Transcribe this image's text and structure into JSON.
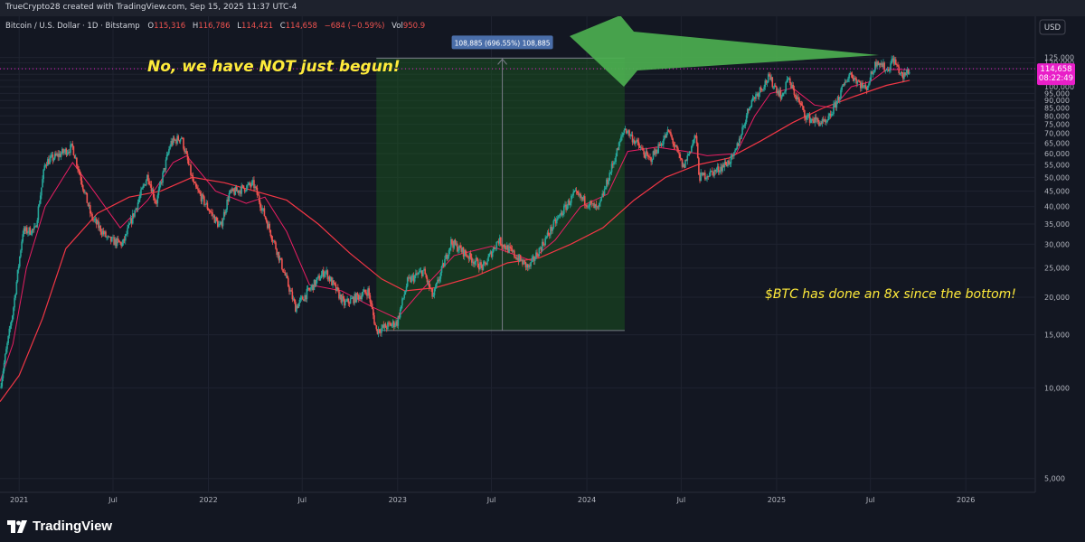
{
  "header": {
    "created_by": "TrueCrypto28 created with TradingView.com, Sep 15, 2025 11:37 UTC-4"
  },
  "symbol_bar": {
    "symbol": "Bitcoin / U.S. Dollar · 1D · Bitstamp",
    "o_label": "O",
    "o": "115,316",
    "h_label": "H",
    "h": "116,786",
    "l_label": "L",
    "l": "114,421",
    "c_label": "C",
    "c": "114,658",
    "change": "−684 (−0.59%)",
    "vol_label": "Vol",
    "vol": "950.9"
  },
  "currency": "USD",
  "price_tag": {
    "price": "114,658",
    "countdown": "08:22:49"
  },
  "annotations": {
    "headline": "No, we have NOT just begun!",
    "btc_note": "$BTC has done an 8x since the bottom!",
    "measure_label": "108,885 (696.55%) 108,885"
  },
  "branding": {
    "logo_text": "TradingView"
  },
  "colors": {
    "background": "#131722",
    "up_candle": "#26a69a",
    "down_candle": "#ef5350",
    "ma_fast": "#e91e63",
    "ma_slow": "#f23645",
    "measure_fill": "#1b5e20",
    "measure_label_bg": "#4a6ea9",
    "annotation_yellow": "#ffeb3b",
    "arrow_green": "#4caf50",
    "price_tag": "#e91ec8"
  },
  "chart_data": {
    "type": "line",
    "title": "Bitcoin / U.S. Dollar · 1D · Bitstamp",
    "y_scale": "log",
    "ylim": [
      5000,
      140000
    ],
    "y_ticks": [
      "125,000",
      "120,000",
      "115,000",
      "110,000",
      "105,000",
      "100,000",
      "95,000",
      "90,000",
      "85,000",
      "80,000",
      "75,000",
      "70,000",
      "65,000",
      "60,000",
      "55,000",
      "50,000",
      "45,000",
      "40,000",
      "35,000",
      "30,000",
      "25,000",
      "20,000",
      "15,000",
      "10,000",
      "5,000"
    ],
    "x_range": [
      "2020-11-25",
      "2026-05-15"
    ],
    "x_ticks": [
      {
        "label": "2021",
        "date": "2021-01-01"
      },
      {
        "label": "Jul",
        "date": "2021-07-01"
      },
      {
        "label": "2022",
        "date": "2022-01-01"
      },
      {
        "label": "Jul",
        "date": "2022-07-01"
      },
      {
        "label": "2023",
        "date": "2023-01-01"
      },
      {
        "label": "Jul",
        "date": "2023-07-01"
      },
      {
        "label": "2024",
        "date": "2024-01-01"
      },
      {
        "label": "Jul",
        "date": "2024-07-01"
      },
      {
        "label": "2025",
        "date": "2025-01-01"
      },
      {
        "label": "Jul",
        "date": "2025-07-01"
      },
      {
        "label": "2026",
        "date": "2026-01-01"
      }
    ],
    "series": [
      {
        "kind": "price",
        "points": [
          [
            "2020-11-25",
            10000
          ],
          [
            "2020-12-20",
            18000
          ],
          [
            "2021-01-08",
            33000
          ],
          [
            "2021-02-01",
            33500
          ],
          [
            "2021-02-20",
            56000
          ],
          [
            "2021-04-14",
            63000
          ],
          [
            "2021-05-20",
            37000
          ],
          [
            "2021-06-22",
            31000
          ],
          [
            "2021-07-20",
            30000
          ],
          [
            "2021-09-06",
            51000
          ],
          [
            "2021-09-22",
            41000
          ],
          [
            "2021-10-20",
            65000
          ],
          [
            "2021-11-10",
            68000
          ],
          [
            "2021-12-04",
            47000
          ],
          [
            "2022-01-24",
            34000
          ],
          [
            "2022-02-10",
            44000
          ],
          [
            "2022-03-29",
            47500
          ],
          [
            "2022-05-12",
            29000
          ],
          [
            "2022-06-18",
            18500
          ],
          [
            "2022-08-14",
            24500
          ],
          [
            "2022-09-20",
            19000
          ],
          [
            "2022-11-05",
            21000
          ],
          [
            "2022-11-21",
            15500
          ],
          [
            "2022-12-31",
            16500
          ],
          [
            "2023-01-20",
            22500
          ],
          [
            "2023-02-20",
            24500
          ],
          [
            "2023-03-10",
            20000
          ],
          [
            "2023-04-14",
            30500
          ],
          [
            "2023-06-15",
            25000
          ],
          [
            "2023-07-14",
            31000
          ],
          [
            "2023-09-11",
            25000
          ],
          [
            "2023-10-30",
            35000
          ],
          [
            "2023-12-08",
            44000
          ],
          [
            "2024-01-23",
            39000
          ],
          [
            "2024-02-15",
            52000
          ],
          [
            "2024-03-14",
            73000
          ],
          [
            "2024-05-01",
            57000
          ],
          [
            "2024-06-07",
            71000
          ],
          [
            "2024-07-05",
            54000
          ],
          [
            "2024-07-29",
            69000
          ],
          [
            "2024-08-05",
            50000
          ],
          [
            "2024-09-06",
            52500
          ],
          [
            "2024-10-10",
            58000
          ],
          [
            "2024-11-12",
            89000
          ],
          [
            "2024-12-17",
            107000
          ],
          [
            "2025-01-13",
            92000
          ],
          [
            "2025-01-21",
            107000
          ],
          [
            "2025-02-28",
            79000
          ],
          [
            "2025-04-07",
            75000
          ],
          [
            "2025-05-22",
            111000
          ],
          [
            "2025-06-22",
            98000
          ],
          [
            "2025-07-14",
            123000
          ],
          [
            "2025-08-02",
            113000
          ],
          [
            "2025-08-14",
            124000
          ],
          [
            "2025-09-01",
            107000
          ],
          [
            "2025-09-15",
            114658
          ]
        ]
      },
      {
        "kind": "ma_fast",
        "points": [
          [
            "2020-11-25",
            10500
          ],
          [
            "2020-12-20",
            14000
          ],
          [
            "2021-01-15",
            25000
          ],
          [
            "2021-02-20",
            40000
          ],
          [
            "2021-04-14",
            56000
          ],
          [
            "2021-05-25",
            45000
          ],
          [
            "2021-07-15",
            34000
          ],
          [
            "2021-09-06",
            42000
          ],
          [
            "2021-10-25",
            56000
          ],
          [
            "2021-11-20",
            59000
          ],
          [
            "2022-01-15",
            45000
          ],
          [
            "2022-03-15",
            41000
          ],
          [
            "2022-04-20",
            43000
          ],
          [
            "2022-06-01",
            33000
          ],
          [
            "2022-07-15",
            22000
          ],
          [
            "2022-09-15",
            21000
          ],
          [
            "2022-11-15",
            18500
          ],
          [
            "2022-12-31",
            17000
          ],
          [
            "2023-02-15",
            21000
          ],
          [
            "2023-04-20",
            27500
          ],
          [
            "2023-07-01",
            29500
          ],
          [
            "2023-09-15",
            26500
          ],
          [
            "2023-11-01",
            31000
          ],
          [
            "2023-12-20",
            40000
          ],
          [
            "2024-02-10",
            44000
          ],
          [
            "2024-03-20",
            61000
          ],
          [
            "2024-05-15",
            63000
          ],
          [
            "2024-07-10",
            61000
          ],
          [
            "2024-08-20",
            59000
          ],
          [
            "2024-10-15",
            60000
          ],
          [
            "2024-11-20",
            80000
          ],
          [
            "2024-12-20",
            95000
          ],
          [
            "2025-02-01",
            99000
          ],
          [
            "2025-03-15",
            87000
          ],
          [
            "2025-04-20",
            85000
          ],
          [
            "2025-05-25",
            100000
          ],
          [
            "2025-07-01",
            104000
          ],
          [
            "2025-08-01",
            114000
          ],
          [
            "2025-09-15",
            114000
          ]
        ]
      },
      {
        "kind": "ma_slow",
        "points": [
          [
            "2020-11-25",
            9000
          ],
          [
            "2021-01-01",
            11000
          ],
          [
            "2021-02-15",
            17000
          ],
          [
            "2021-04-01",
            29000
          ],
          [
            "2021-06-01",
            38000
          ],
          [
            "2021-08-01",
            43000
          ],
          [
            "2021-10-01",
            45000
          ],
          [
            "2021-12-01",
            50000
          ],
          [
            "2022-02-01",
            48000
          ],
          [
            "2022-04-01",
            45000
          ],
          [
            "2022-06-01",
            42000
          ],
          [
            "2022-08-01",
            35000
          ],
          [
            "2022-10-01",
            28000
          ],
          [
            "2022-12-01",
            23000
          ],
          [
            "2023-01-15",
            21000
          ],
          [
            "2023-03-15",
            21500
          ],
          [
            "2023-06-01",
            23500
          ],
          [
            "2023-08-01",
            26000
          ],
          [
            "2023-10-01",
            27000
          ],
          [
            "2023-12-01",
            30000
          ],
          [
            "2024-02-01",
            34000
          ],
          [
            "2024-04-01",
            42000
          ],
          [
            "2024-06-01",
            50000
          ],
          [
            "2024-08-01",
            55000
          ],
          [
            "2024-10-01",
            58000
          ],
          [
            "2024-12-01",
            66000
          ],
          [
            "2025-02-01",
            76000
          ],
          [
            "2025-04-01",
            85000
          ],
          [
            "2025-06-01",
            93000
          ],
          [
            "2025-08-01",
            101000
          ],
          [
            "2025-09-15",
            105000
          ]
        ]
      }
    ],
    "measure_range": {
      "from_date": "2022-11-21",
      "to_date": "2024-03-14",
      "low": 15500,
      "high": 124400
    }
  }
}
